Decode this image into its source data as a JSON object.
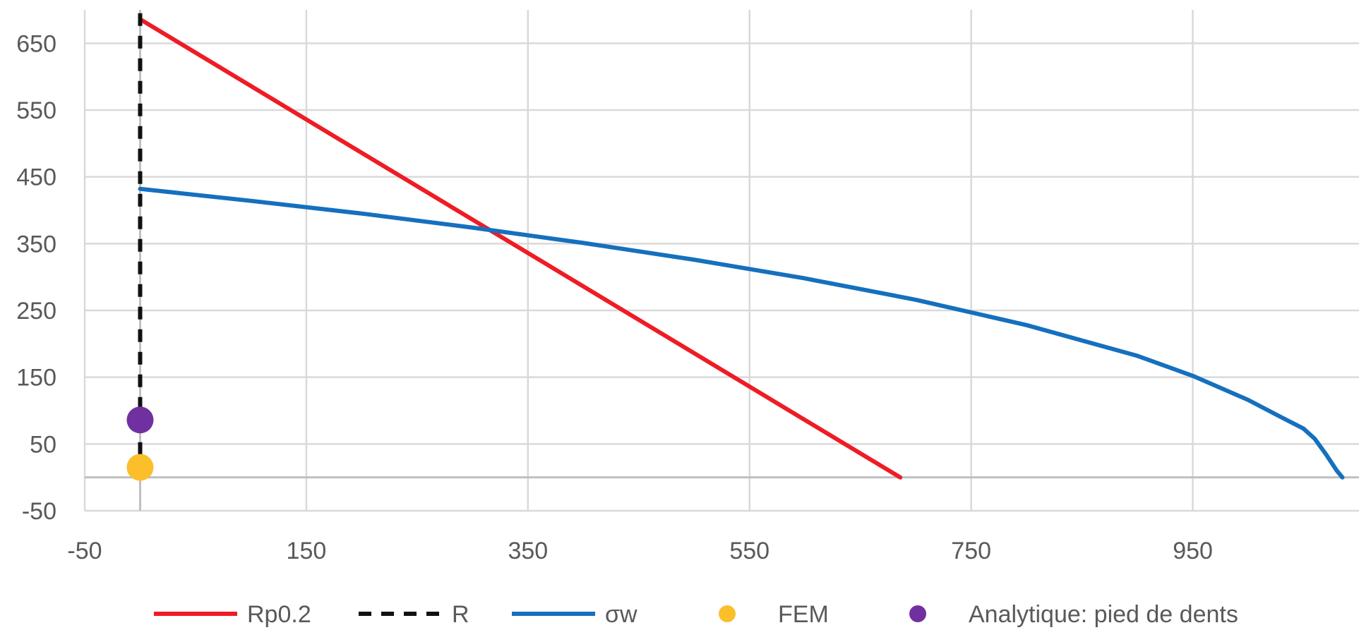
{
  "chart_data": {
    "type": "line",
    "title": "",
    "xlabel": "",
    "ylabel": "",
    "xlim": [
      -50,
      1100
    ],
    "ylim": [
      -50,
      700
    ],
    "x_ticks": [
      -50,
      150,
      350,
      550,
      750,
      950
    ],
    "y_ticks": [
      -50,
      50,
      150,
      250,
      350,
      450,
      550,
      650
    ],
    "x_tick_labels": [
      "-50",
      "150",
      "350",
      "550",
      "750",
      "950"
    ],
    "y_tick_labels": [
      "-50",
      "50",
      "150",
      "250",
      "350",
      "450",
      "550",
      "650"
    ],
    "grid": true,
    "legend_position": "bottom",
    "series": [
      {
        "name": "Rp0.2",
        "kind": "line",
        "style": "solid",
        "color": "#ee1c25",
        "x": [
          0,
          686
        ],
        "y": [
          686,
          0
        ]
      },
      {
        "name": "R",
        "kind": "line",
        "style": "dashed",
        "color": "#111111",
        "x": [
          0,
          0
        ],
        "y": [
          0,
          700
        ]
      },
      {
        "name": "σw",
        "kind": "line",
        "style": "solid",
        "color": "#1570be",
        "x": [
          0,
          100,
          200,
          300,
          400,
          500,
          600,
          700,
          800,
          900,
          950,
          1000,
          1030,
          1050,
          1060,
          1070,
          1080,
          1085
        ],
        "y": [
          432,
          414,
          395,
          374,
          351,
          326,
          298,
          266,
          228,
          182,
          152,
          116,
          90,
          73,
          58,
          35,
          10,
          0
        ]
      },
      {
        "name": "FEM",
        "kind": "scatter",
        "color": "#fbbf2b",
        "x": [
          0
        ],
        "y": [
          15
        ]
      },
      {
        "name": "Analytique: pied de dents",
        "kind": "scatter",
        "color": "#7030a0",
        "x": [
          0
        ],
        "y": [
          86
        ]
      }
    ]
  }
}
